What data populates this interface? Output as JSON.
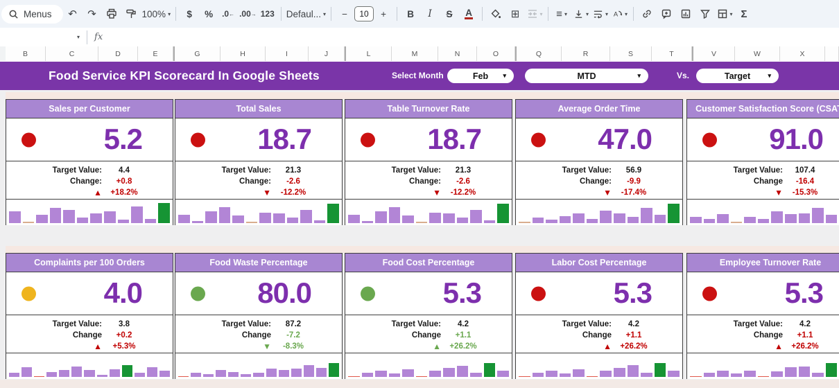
{
  "toolbar": {
    "menus": "Menus",
    "undo": "↶",
    "redo": "↷",
    "zoom": "100%",
    "currency": "$",
    "percent": "%",
    "dec_decrease": ".0",
    "dec_increase": ".00",
    "more_formats": "123",
    "font": "Defaul...",
    "minus": "−",
    "font_size": "10",
    "plus": "+",
    "bold": "B",
    "italic": "I",
    "strike": "S",
    "text_color": "A",
    "borders": "⊞",
    "halign": "≡",
    "sigma": "Σ",
    "caret": "▾"
  },
  "formula_bar": {
    "fx_label": "fx",
    "caret": "▾"
  },
  "column_headers": [
    "B",
    "C",
    "D",
    "E",
    "G",
    "H",
    "I",
    "J",
    "L",
    "M",
    "N",
    "O",
    "Q",
    "R",
    "S",
    "T",
    "V",
    "W",
    "X"
  ],
  "banner": {
    "title": "Food Service KPI Scorecard In Google Sheets",
    "select_month_label": "Select Month",
    "month_value": "Feb",
    "period_value": "MTD",
    "vs_label": "Vs.",
    "target_value": "Target"
  },
  "colors": {
    "banner": "#7a35a8",
    "card_header": "#a886d2",
    "value_text": "#7d2fad",
    "red": "#c00000",
    "green": "#6aa84f",
    "dot_red": "#cb1111",
    "dot_amber": "#efb41e",
    "dot_green": "#6aa84f",
    "bar_purple": "#b285d6",
    "bar_green": "#169434",
    "bar_neutral": "#d9ad8f",
    "bar_red": "#e0584a"
  },
  "cards": [
    {
      "title": "Sales per Customer",
      "value": "5.2",
      "status": "red",
      "target_label": "Target Value:",
      "target": "4.4",
      "change_label": "Change:",
      "change": "+0.8",
      "change_tone": "red",
      "trend_dir": "up",
      "trend": "+18.2%",
      "trend_tone": "red",
      "bars": [
        [
          55,
          "p"
        ],
        [
          6,
          "n"
        ],
        [
          38,
          "p"
        ],
        [
          72,
          "p"
        ],
        [
          62,
          "p"
        ],
        [
          25,
          "p"
        ],
        [
          45,
          "p"
        ],
        [
          55,
          "p"
        ],
        [
          15,
          "p"
        ],
        [
          78,
          "p"
        ],
        [
          20,
          "p"
        ],
        [
          95,
          "g"
        ]
      ]
    },
    {
      "title": "Total Sales",
      "value": "18.7",
      "status": "red",
      "target_label": "Target Value:",
      "target": "21.3",
      "change_label": "Change:",
      "change": "-2.6",
      "change_tone": "red",
      "trend_dir": "down",
      "trend": "-12.2%",
      "trend_tone": "red",
      "bars": [
        [
          40,
          "p"
        ],
        [
          10,
          "p"
        ],
        [
          55,
          "p"
        ],
        [
          75,
          "p"
        ],
        [
          35,
          "p"
        ],
        [
          6,
          "n"
        ],
        [
          50,
          "p"
        ],
        [
          45,
          "p"
        ],
        [
          25,
          "p"
        ],
        [
          60,
          "p"
        ],
        [
          12,
          "p"
        ],
        [
          90,
          "g"
        ]
      ]
    },
    {
      "title": "Table Turnover Rate",
      "value": "18.7",
      "status": "red",
      "target_label": "Target Value:",
      "target": "21.3",
      "change_label": "Change:",
      "change": "-2.6",
      "change_tone": "red",
      "trend_dir": "down",
      "trend": "-12.2%",
      "trend_tone": "red",
      "bars": [
        [
          40,
          "p"
        ],
        [
          10,
          "p"
        ],
        [
          55,
          "p"
        ],
        [
          75,
          "p"
        ],
        [
          35,
          "p"
        ],
        [
          6,
          "n"
        ],
        [
          50,
          "p"
        ],
        [
          45,
          "p"
        ],
        [
          25,
          "p"
        ],
        [
          60,
          "p"
        ],
        [
          12,
          "p"
        ],
        [
          90,
          "g"
        ]
      ]
    },
    {
      "title": "Average Order Time",
      "value": "47.0",
      "status": "red",
      "target_label": "Target Value:",
      "target": "56.9",
      "change_label": "Change:",
      "change": "-9.9",
      "change_tone": "red",
      "trend_dir": "down",
      "trend": "-17.4%",
      "trend_tone": "red",
      "bars": [
        [
          6,
          "n"
        ],
        [
          25,
          "p"
        ],
        [
          15,
          "p"
        ],
        [
          33,
          "p"
        ],
        [
          45,
          "p"
        ],
        [
          20,
          "p"
        ],
        [
          58,
          "p"
        ],
        [
          45,
          "p"
        ],
        [
          30,
          "p"
        ],
        [
          70,
          "p"
        ],
        [
          40,
          "p"
        ],
        [
          90,
          "g"
        ]
      ]
    },
    {
      "title": "Customer Satisfaction Score (CSAT)",
      "value": "91.0",
      "status": "red",
      "target_label": "Target Value:",
      "target": "107.4",
      "change_label": "Change",
      "change": "-16.4",
      "change_tone": "red",
      "trend_dir": "down",
      "trend": "-15.3%",
      "trend_tone": "red",
      "bars": [
        [
          30,
          "p"
        ],
        [
          20,
          "p"
        ],
        [
          42,
          "p"
        ],
        [
          6,
          "n"
        ],
        [
          30,
          "p"
        ],
        [
          18,
          "p"
        ],
        [
          55,
          "p"
        ],
        [
          42,
          "p"
        ],
        [
          45,
          "p"
        ],
        [
          70,
          "p"
        ],
        [
          38,
          "p"
        ],
        [
          90,
          "g"
        ]
      ]
    },
    {
      "title": "Complaints per 100 Orders",
      "value": "4.0",
      "status": "amber",
      "target_label": "Target Value:",
      "target": "3.8",
      "change_label": "Change",
      "change": "+0.2",
      "change_tone": "red",
      "trend_dir": "up",
      "trend": "+5.3%",
      "trend_tone": "red",
      "bars": [
        [
          20,
          "p"
        ],
        [
          45,
          "p"
        ],
        [
          4,
          "r"
        ],
        [
          22,
          "p"
        ],
        [
          33,
          "p"
        ],
        [
          50,
          "p"
        ],
        [
          32,
          "p"
        ],
        [
          10,
          "p"
        ],
        [
          35,
          "p"
        ],
        [
          55,
          "g"
        ],
        [
          20,
          "p"
        ],
        [
          45,
          "p"
        ],
        [
          30,
          "p"
        ]
      ]
    },
    {
      "title": "Food Waste Percentage",
      "value": "80.0",
      "status": "green",
      "target_label": "Target Value:",
      "target": "87.2",
      "change_label": "Change",
      "change": "-7.2",
      "change_tone": "green",
      "trend_dir": "down",
      "trend": "-8.3%",
      "trend_tone": "green",
      "bars": [
        [
          4,
          "r"
        ],
        [
          18,
          "p"
        ],
        [
          14,
          "p"
        ],
        [
          32,
          "p"
        ],
        [
          22,
          "p"
        ],
        [
          12,
          "p"
        ],
        [
          18,
          "p"
        ],
        [
          40,
          "p"
        ],
        [
          32,
          "p"
        ],
        [
          38,
          "p"
        ],
        [
          55,
          "p"
        ],
        [
          42,
          "p"
        ],
        [
          65,
          "g"
        ]
      ]
    },
    {
      "title": "Food Cost Percentage",
      "value": "5.3",
      "status": "green",
      "target_label": "Target Value:",
      "target": "4.2",
      "change_label": "Change",
      "change": "+1.1",
      "change_tone": "green",
      "trend_dir": "up",
      "trend": "+26.2%",
      "trend_tone": "green",
      "bars": [
        [
          4,
          "r"
        ],
        [
          18,
          "p"
        ],
        [
          28,
          "p"
        ],
        [
          15,
          "p"
        ],
        [
          35,
          "p"
        ],
        [
          4,
          "r"
        ],
        [
          28,
          "p"
        ],
        [
          42,
          "p"
        ],
        [
          52,
          "p"
        ],
        [
          18,
          "p"
        ],
        [
          65,
          "g"
        ],
        [
          28,
          "p"
        ]
      ]
    },
    {
      "title": "Labor Cost Percentage",
      "value": "5.3",
      "status": "red",
      "target_label": "Target Value:",
      "target": "4.2",
      "change_label": "Change",
      "change": "+1.1",
      "change_tone": "red",
      "trend_dir": "up",
      "trend": "+26.2%",
      "trend_tone": "red",
      "bars": [
        [
          4,
          "r"
        ],
        [
          20,
          "p"
        ],
        [
          28,
          "p"
        ],
        [
          15,
          "p"
        ],
        [
          35,
          "p"
        ],
        [
          4,
          "r"
        ],
        [
          28,
          "p"
        ],
        [
          42,
          "p"
        ],
        [
          55,
          "p"
        ],
        [
          20,
          "p"
        ],
        [
          65,
          "g"
        ],
        [
          28,
          "p"
        ]
      ]
    },
    {
      "title": "Employee Turnover Rate",
      "value": "5.3",
      "status": "red",
      "target_label": "Target Value:",
      "target": "4.2",
      "change_label": "Change",
      "change": "+1.1",
      "change_tone": "red",
      "trend_dir": "up",
      "trend": "+26.2%",
      "trend_tone": "red",
      "bars": [
        [
          4,
          "r"
        ],
        [
          18,
          "p"
        ],
        [
          28,
          "p"
        ],
        [
          15,
          "p"
        ],
        [
          30,
          "p"
        ],
        [
          4,
          "r"
        ],
        [
          25,
          "p"
        ],
        [
          45,
          "p"
        ],
        [
          50,
          "p"
        ],
        [
          18,
          "p"
        ],
        [
          65,
          "g"
        ],
        [
          28,
          "p"
        ]
      ]
    }
  ]
}
